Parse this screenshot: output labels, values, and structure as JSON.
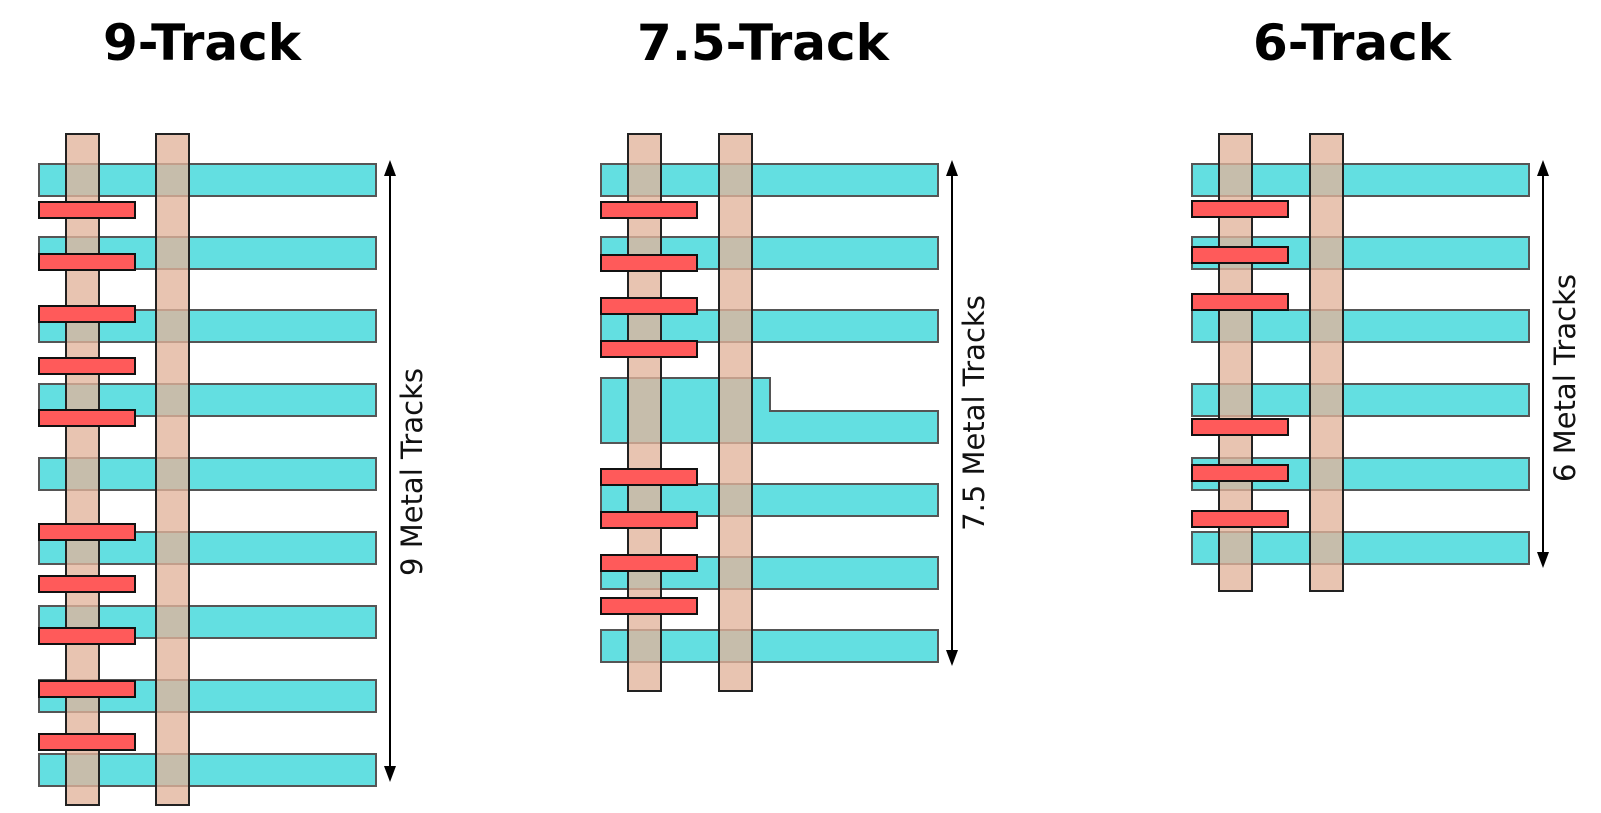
{
  "cells": [
    {
      "title": "9-Track",
      "dimension_label": "9 Metal Tracks",
      "metal_tracks": 9,
      "poly_gates": 2
    },
    {
      "title": "7.5-Track",
      "dimension_label": "7.5 Metal Tracks",
      "metal_tracks": 7.5,
      "poly_gates": 2
    },
    {
      "title": "6-Track",
      "dimension_label": "6 Metal Tracks",
      "metal_tracks": 6,
      "poly_gates": 2
    }
  ],
  "colors": {
    "metal": "#27d3d6",
    "poly": "#e2b39b",
    "contact": "#ff5a5a"
  }
}
